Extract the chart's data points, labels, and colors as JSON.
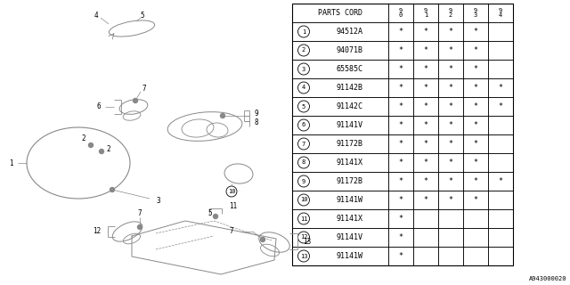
{
  "bg_color": "#ffffff",
  "line_color": "#000000",
  "diagram_color": "#888888",
  "table_header_cols": [
    "9\n0",
    "9\n1",
    "9\n2",
    "9\n3",
    "9\n4"
  ],
  "rows": [
    {
      "num": "1",
      "code": "94512A",
      "cols": [
        "*",
        "*",
        "*",
        "*",
        ""
      ]
    },
    {
      "num": "2",
      "code": "94071B",
      "cols": [
        "*",
        "*",
        "*",
        "*",
        ""
      ]
    },
    {
      "num": "3",
      "code": "65585C",
      "cols": [
        "*",
        "*",
        "*",
        "*",
        ""
      ]
    },
    {
      "num": "4",
      "code": "91142B",
      "cols": [
        "*",
        "*",
        "*",
        "*",
        "*"
      ]
    },
    {
      "num": "5",
      "code": "91142C",
      "cols": [
        "*",
        "*",
        "*",
        "*",
        "*"
      ]
    },
    {
      "num": "6",
      "code": "91141V",
      "cols": [
        "*",
        "*",
        "*",
        "*",
        ""
      ]
    },
    {
      "num": "7",
      "code": "91172B",
      "cols": [
        "*",
        "*",
        "*",
        "*",
        ""
      ]
    },
    {
      "num": "8",
      "code": "91141X",
      "cols": [
        "*",
        "*",
        "*",
        "*",
        ""
      ]
    },
    {
      "num": "9",
      "code": "91172B",
      "cols": [
        "*",
        "*",
        "*",
        "*",
        "*"
      ]
    },
    {
      "num": "10",
      "code": "91141W",
      "cols": [
        "*",
        "*",
        "*",
        "*",
        ""
      ]
    },
    {
      "num": "11",
      "code": "91141X",
      "cols": [
        "*",
        "",
        "",
        "",
        ""
      ]
    },
    {
      "num": "12",
      "code": "91141V",
      "cols": [
        "*",
        "",
        "",
        "",
        ""
      ]
    },
    {
      "num": "13",
      "code": "91141W",
      "cols": [
        "*",
        "",
        "",
        "",
        ""
      ]
    }
  ],
  "footer_text": "A943000020"
}
